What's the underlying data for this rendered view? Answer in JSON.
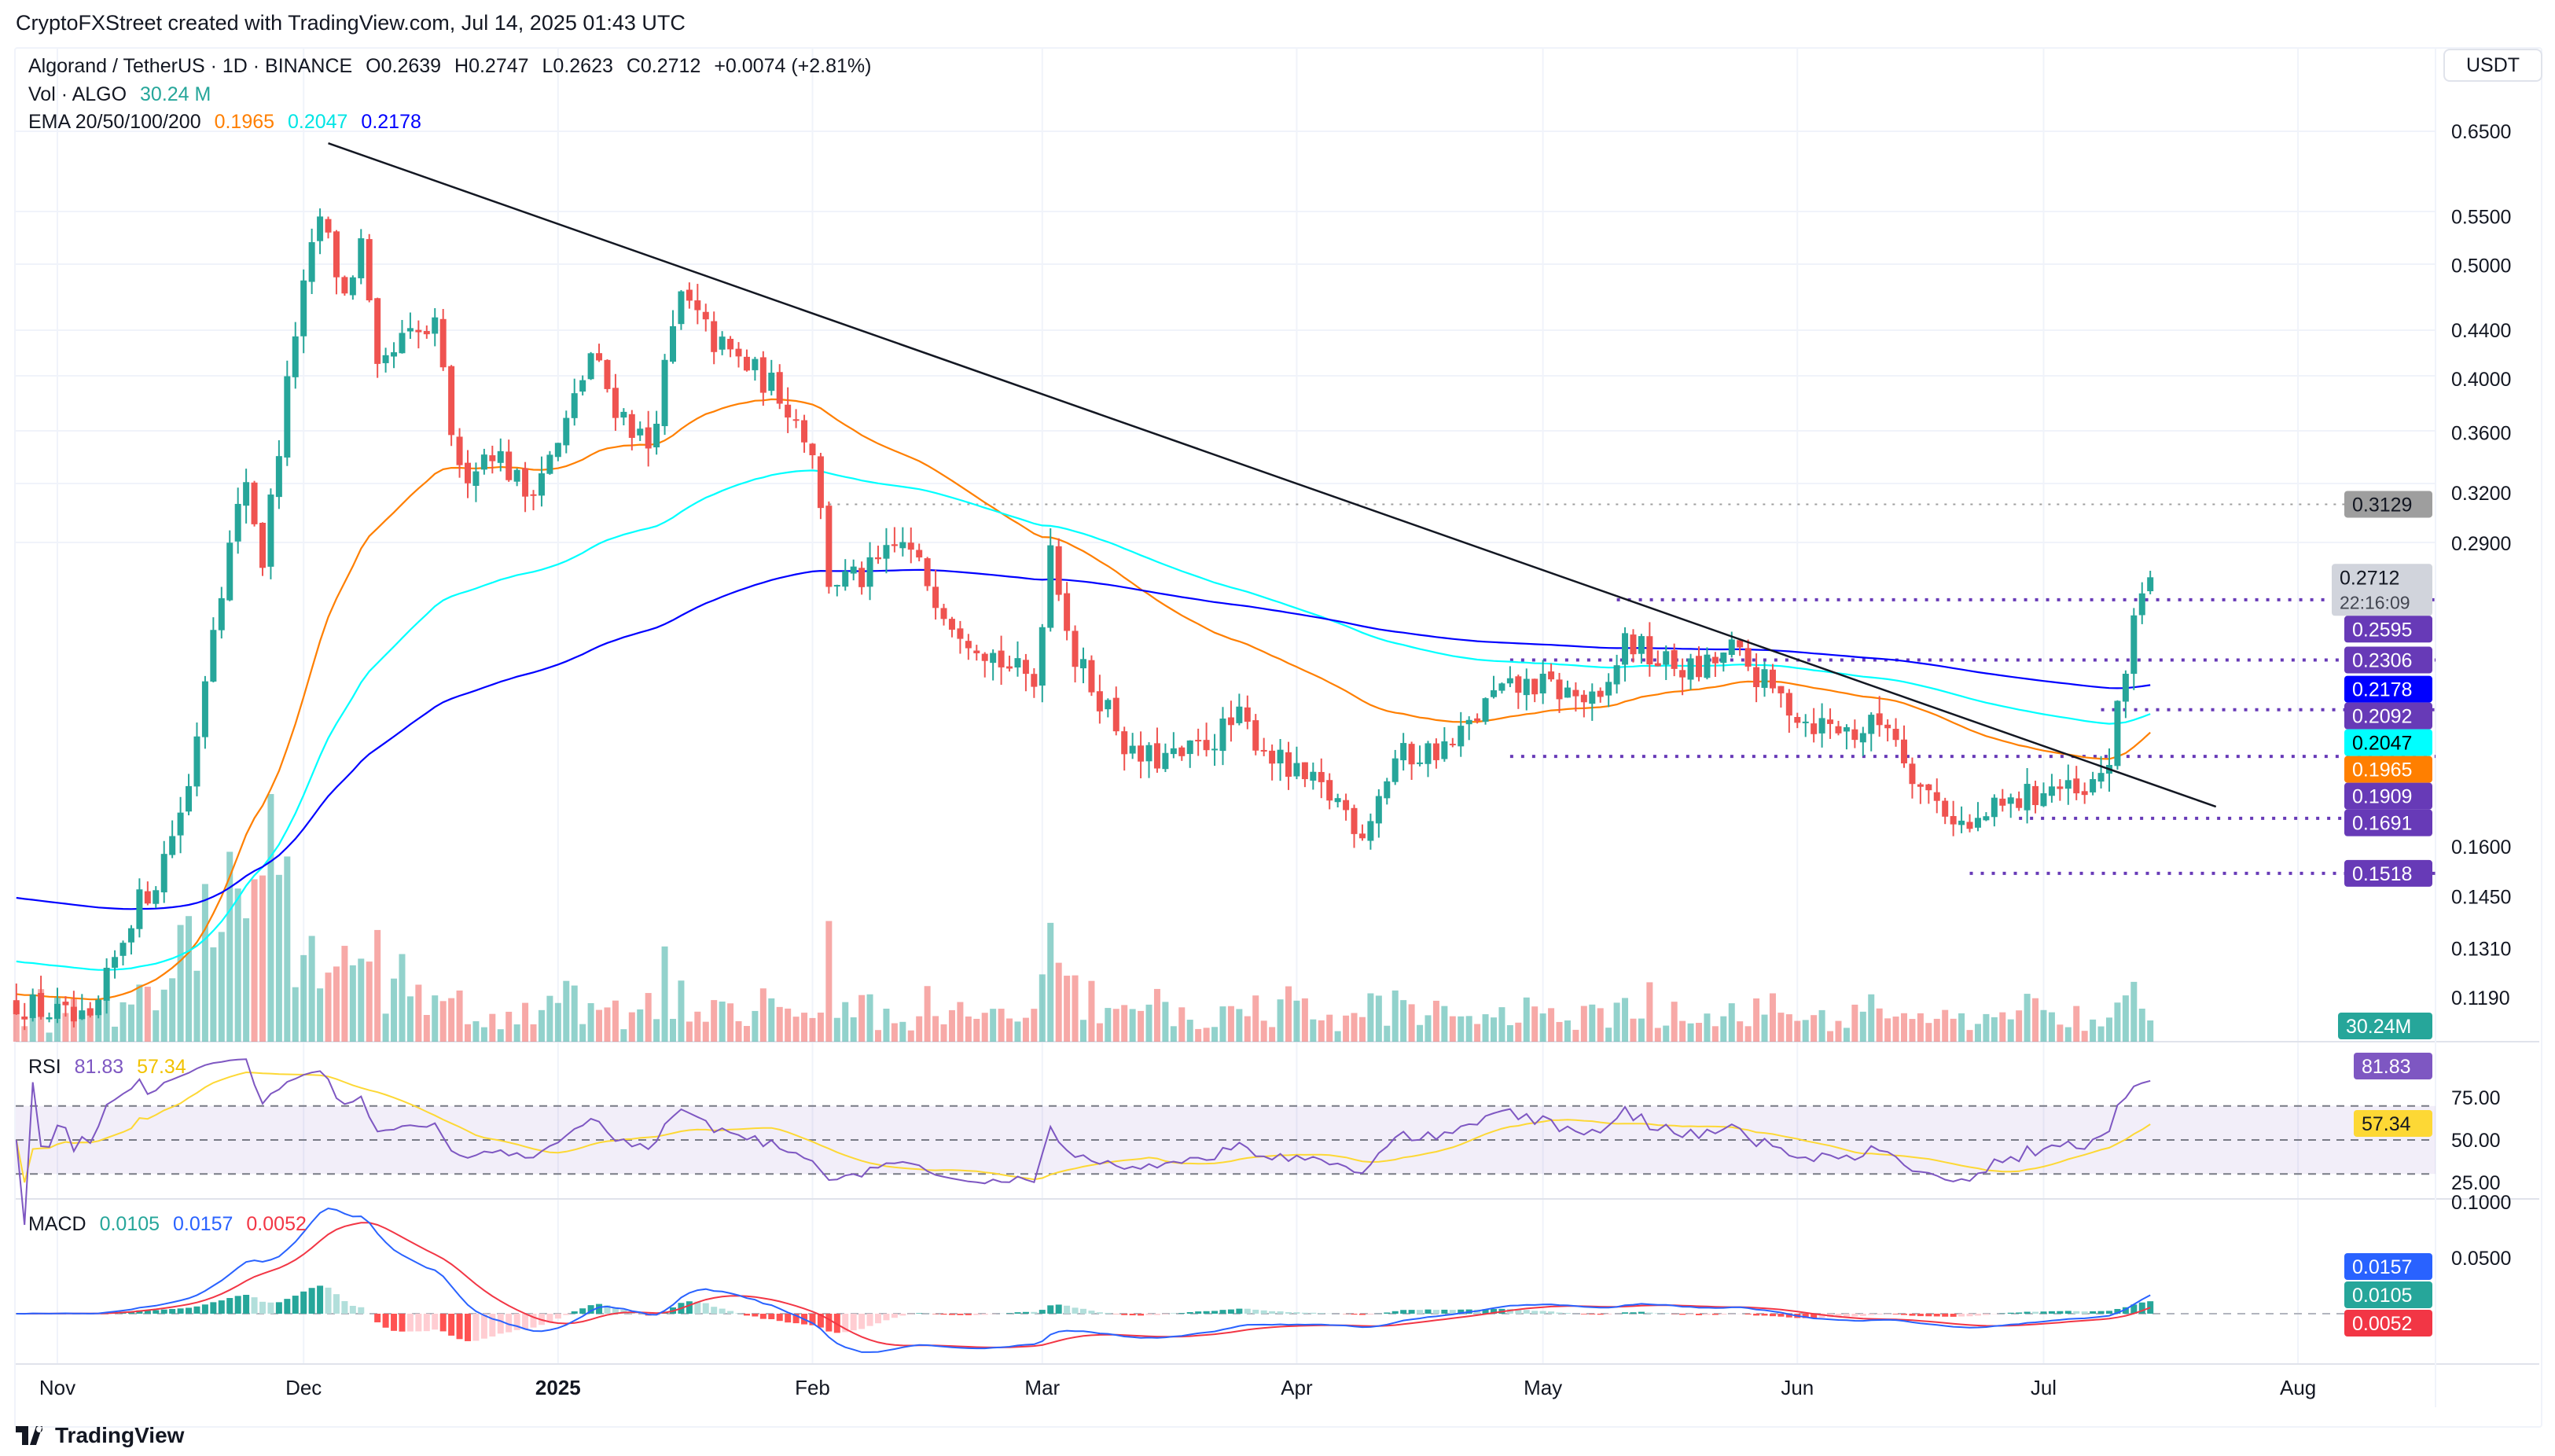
{
  "credit": "CryptoFXStreet created with TradingView.com, Jul 14, 2025 01:43 UTC",
  "header": {
    "symbol": "Algorand / TetherUS · 1D · BINANCE",
    "open": "O0.2639",
    "high": "H0.2747",
    "low": "L0.2623",
    "close": "C0.2712",
    "change": "+0.0074 (+2.81%)",
    "vol_label": "Vol · ALGO",
    "vol_value": "30.24 M",
    "ema_label": "EMA 20/50/100/200",
    "ema_values": [
      "0.1965",
      "0.2047",
      "0.2178"
    ]
  },
  "currency_button": "USDT",
  "countdown": "22:16:09",
  "brand": "TradingView",
  "colors": {
    "up": "#26a69a",
    "down": "#ef5350",
    "ema_fast": "#ff7f00",
    "ema_mid": "#00ffff",
    "ema_slow": "#0000ff",
    "level": "#673ab7",
    "rsi": "#7e57c2",
    "rsi_ma": "#fdd835",
    "macd": "#2962ff",
    "signal": "#f23645"
  },
  "chart_data": [
    {
      "type": "candlestick",
      "title": "Algorand / TetherUS · 1D · BINANCE",
      "scale": "log",
      "ylim": [
        0.108,
        0.69
      ],
      "y_ticks": [
        "0.6500",
        "0.5500",
        "0.5000",
        "0.4400",
        "0.4000",
        "0.3600",
        "0.3200",
        "0.2900",
        "0.1600",
        "0.1450",
        "0.1310",
        "0.1190"
      ],
      "x_ticks": [
        {
          "label": "Nov",
          "date": "2024-11-01"
        },
        {
          "label": "Dec",
          "date": "2024-12-01"
        },
        {
          "label": "2025",
          "date": "2025-01-01"
        },
        {
          "label": "Feb",
          "date": "2025-02-01"
        },
        {
          "label": "Mar",
          "date": "2025-03-01"
        },
        {
          "label": "Apr",
          "date": "2025-04-01"
        },
        {
          "label": "May",
          "date": "2025-05-01"
        },
        {
          "label": "Jun",
          "date": "2025-06-01"
        },
        {
          "label": "Jul",
          "date": "2025-07-01"
        },
        {
          "label": "Aug",
          "date": "2025-08-01"
        }
      ],
      "approx_close_path": [
        [
          "2024-10-27",
          0.118
        ],
        [
          "2024-11-01",
          0.115
        ],
        [
          "2024-11-05",
          0.112
        ],
        [
          "2024-11-10",
          0.14
        ],
        [
          "2024-11-13",
          0.15
        ],
        [
          "2024-11-17",
          0.18
        ],
        [
          "2024-11-20",
          0.25
        ],
        [
          "2024-11-24",
          0.33
        ],
        [
          "2024-11-26",
          0.28
        ],
        [
          "2024-11-30",
          0.44
        ],
        [
          "2024-12-03",
          0.55
        ],
        [
          "2024-12-06",
          0.47
        ],
        [
          "2024-12-08",
          0.52
        ],
        [
          "2024-12-10",
          0.4
        ],
        [
          "2024-12-13",
          0.43
        ],
        [
          "2024-12-17",
          0.44
        ],
        [
          "2024-12-20",
          0.33
        ],
        [
          "2024-12-24",
          0.35
        ],
        [
          "2024-12-28",
          0.32
        ],
        [
          "2025-01-01",
          0.35
        ],
        [
          "2025-01-05",
          0.42
        ],
        [
          "2025-01-08",
          0.38
        ],
        [
          "2025-01-12",
          0.35
        ],
        [
          "2025-01-16",
          0.47
        ],
        [
          "2025-01-20",
          0.43
        ],
        [
          "2025-01-24",
          0.41
        ],
        [
          "2025-01-28",
          0.39
        ],
        [
          "2025-02-01",
          0.35
        ],
        [
          "2025-02-03",
          0.27
        ],
        [
          "2025-02-07",
          0.27
        ],
        [
          "2025-02-12",
          0.29
        ],
        [
          "2025-02-18",
          0.25
        ],
        [
          "2025-02-24",
          0.23
        ],
        [
          "2025-02-28",
          0.22
        ],
        [
          "2025-03-02",
          0.29
        ],
        [
          "2025-03-05",
          0.23
        ],
        [
          "2025-03-09",
          0.21
        ],
        [
          "2025-03-12",
          0.19
        ],
        [
          "2025-03-18",
          0.19
        ],
        [
          "2025-03-25",
          0.205
        ],
        [
          "2025-03-31",
          0.185
        ],
        [
          "2025-04-06",
          0.175
        ],
        [
          "2025-04-09",
          0.165
        ],
        [
          "2025-04-13",
          0.19
        ],
        [
          "2025-04-20",
          0.195
        ],
        [
          "2025-04-25",
          0.215
        ],
        [
          "2025-04-30",
          0.22
        ],
        [
          "2025-05-05",
          0.215
        ],
        [
          "2025-05-08",
          0.21
        ],
        [
          "2025-05-11",
          0.24
        ],
        [
          "2025-05-15",
          0.23
        ],
        [
          "2025-05-20",
          0.225
        ],
        [
          "2025-05-24",
          0.235
        ],
        [
          "2025-05-28",
          0.22
        ],
        [
          "2025-06-02",
          0.205
        ],
        [
          "2025-06-08",
          0.2
        ],
        [
          "2025-06-12",
          0.205
        ],
        [
          "2025-06-16",
          0.18
        ],
        [
          "2025-06-22",
          0.165
        ],
        [
          "2025-06-24",
          0.17
        ],
        [
          "2025-06-28",
          0.175
        ],
        [
          "2025-07-02",
          0.18
        ],
        [
          "2025-07-06",
          0.175
        ],
        [
          "2025-07-09",
          0.19
        ],
        [
          "2025-07-11",
          0.225
        ],
        [
          "2025-07-12",
          0.255
        ],
        [
          "2025-07-13",
          0.2639
        ],
        [
          "2025-07-14",
          0.2712
        ]
      ],
      "last_candle": {
        "open": 0.2639,
        "high": 0.2747,
        "low": 0.2623,
        "close": 0.2712
      },
      "ema_seed": [
        0.12,
        0.128,
        0.145
      ],
      "trendline": [
        [
          "2024-12-04",
          0.635
        ],
        [
          "2025-07-22",
          0.173
        ]
      ],
      "levels": [
        {
          "value": 0.3129,
          "label": "0.3129",
          "from": "2025-02-03",
          "style": "gray"
        },
        {
          "value": 0.2595,
          "label": "0.2595",
          "from": "2025-05-10",
          "style": "purple"
        },
        {
          "value": 0.2306,
          "label": "0.2306",
          "from": "2025-04-27",
          "style": "purple"
        },
        {
          "value": 0.2092,
          "label": "0.2092",
          "from": "2025-07-08",
          "style": "purple"
        },
        {
          "value": 0.1909,
          "label": "0.1909",
          "from": "2025-04-27",
          "style": "purple"
        },
        {
          "value": 0.1691,
          "label": "0.1691",
          "from": "2025-06-28",
          "style": "purple"
        },
        {
          "value": 0.1518,
          "label": "0.1518",
          "from": "2025-06-22",
          "style": "purple"
        }
      ],
      "price_badges": [
        {
          "value": 0.3129,
          "label": "0.3129",
          "bg": "#9e9e9e",
          "fg": "#131722"
        },
        {
          "value": 0.2712,
          "label": "0.2712",
          "bg": "#d1d4dc",
          "fg": "#131722"
        },
        {
          "value": 0.2595,
          "label": "0.2595",
          "bg": "#673ab7",
          "fg": "#ffffff"
        },
        {
          "value": 0.2306,
          "label": "0.2306",
          "bg": "#673ab7",
          "fg": "#ffffff"
        },
        {
          "value": 0.2178,
          "label": "0.2178",
          "bg": "#0000ff",
          "fg": "#ffffff"
        },
        {
          "value": 0.2092,
          "label": "0.2092",
          "bg": "#673ab7",
          "fg": "#ffffff"
        },
        {
          "value": 0.2047,
          "label": "0.2047",
          "bg": "#00ffff",
          "fg": "#000000"
        },
        {
          "value": 0.1965,
          "label": "0.1965",
          "bg": "#ff7f00",
          "fg": "#ffffff"
        },
        {
          "value": 0.1909,
          "label": "0.1909",
          "bg": "#673ab7",
          "fg": "#ffffff"
        },
        {
          "value": 0.1691,
          "label": "0.1691",
          "bg": "#673ab7",
          "fg": "#ffffff"
        },
        {
          "value": 0.1518,
          "label": "0.1518",
          "bg": "#673ab7",
          "fg": "#ffffff"
        }
      ],
      "volume_badge": {
        "label": "30.24M",
        "bg": "#26a69a"
      }
    },
    {
      "type": "line",
      "title": "RSI",
      "values_label": [
        "81.83",
        "57.34"
      ],
      "ylim": [
        0,
        100
      ],
      "y_ticks": [
        "75.00",
        "50.00",
        "25.00"
      ],
      "bands": [
        70,
        50,
        30
      ],
      "badges": [
        {
          "value": 81.83,
          "label": "81.83",
          "bg": "#7e57c2",
          "fg": "#ffffff"
        },
        {
          "value": 57.34,
          "label": "57.34",
          "bg": "#fdd835",
          "fg": "#131722"
        }
      ]
    },
    {
      "type": "line",
      "title": "MACD",
      "values_label": [
        "0.0105",
        "0.0157",
        "0.0052"
      ],
      "y_ticks": [
        "0.1000",
        "0.0500"
      ],
      "badges": [
        {
          "label": "0.0157",
          "bg": "#2962ff"
        },
        {
          "label": "0.0105",
          "bg": "#26a69a"
        },
        {
          "label": "0.0052",
          "bg": "#f23645"
        }
      ]
    }
  ]
}
